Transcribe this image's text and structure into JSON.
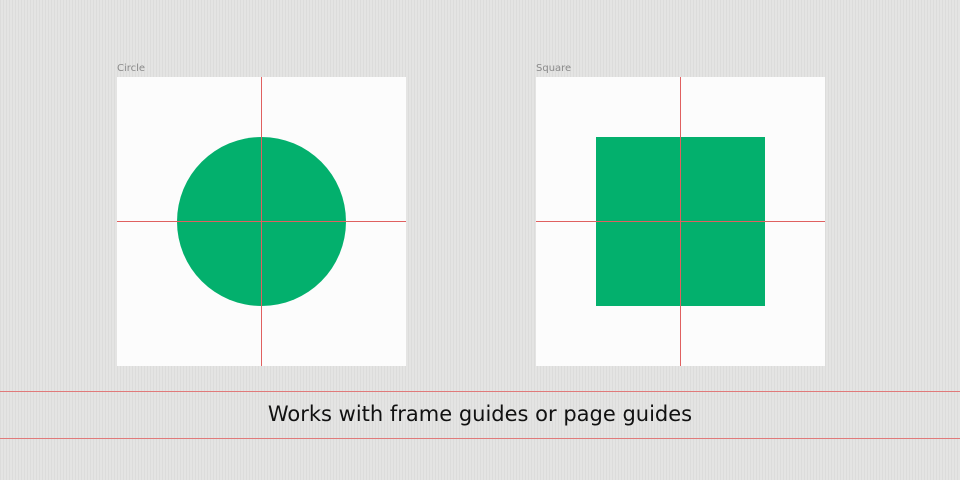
{
  "frames": [
    {
      "label": "Circle",
      "shape": "circle"
    },
    {
      "label": "Square",
      "shape": "square"
    }
  ],
  "caption": "Works with frame guides or page guides",
  "colors": {
    "shape_fill": "#03b06d",
    "guide": "#e06060",
    "frame_bg": "#fcfcfc",
    "canvas_bg": "#e4e4e3"
  }
}
